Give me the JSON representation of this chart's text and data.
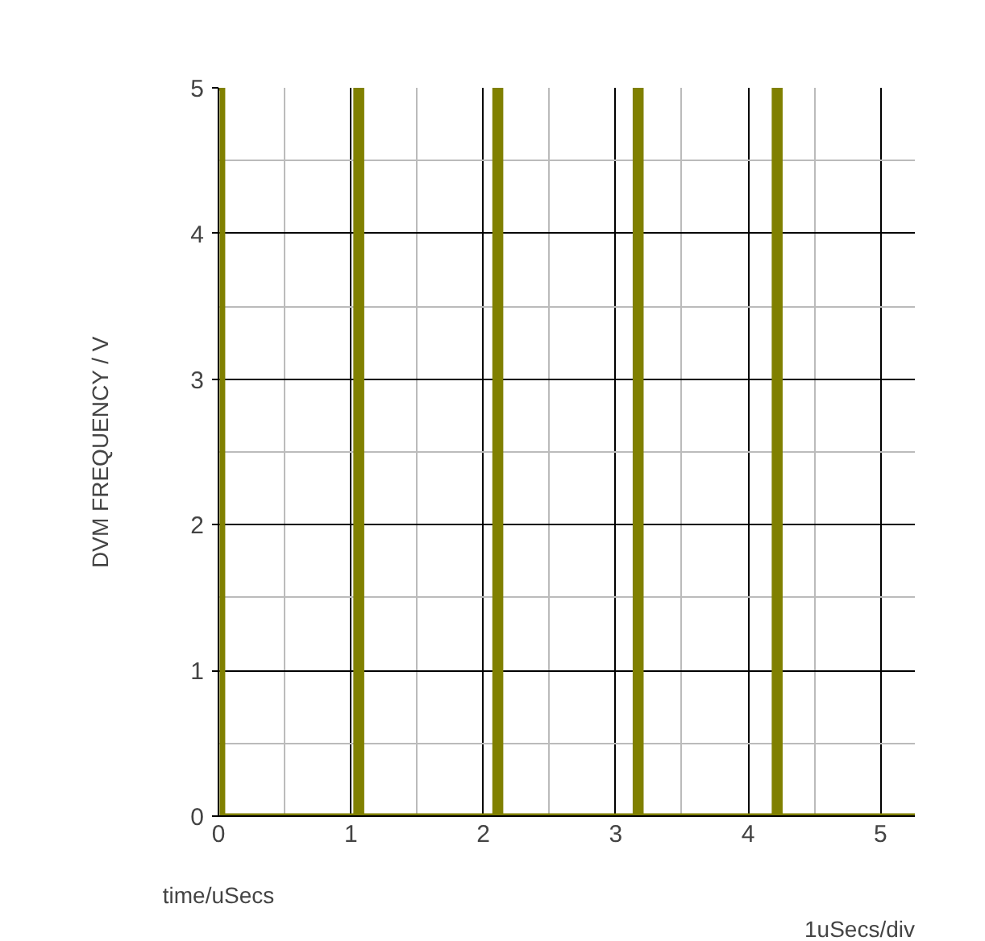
{
  "chart_data": {
    "type": "line",
    "xlabel": "time/uSecs",
    "ylabel": "DVM FREQUENCY / V",
    "annotations": [
      "1uSecs/div"
    ],
    "series": [
      {
        "color": "#808000",
        "x": [
          0,
          0.03,
          0.03,
          1.04,
          1.04,
          1.08,
          1.08,
          2.09,
          2.09,
          2.13,
          2.13,
          3.15,
          3.15,
          3.19,
          3.19,
          4.2,
          4.2,
          4.24,
          4.24,
          5.26
        ],
        "values": [
          5,
          5,
          0,
          0,
          5,
          5,
          0,
          0,
          5,
          5,
          0,
          0,
          5,
          5,
          0,
          0,
          5,
          5,
          0,
          0
        ]
      }
    ],
    "xlim": [
      0,
      5.26
    ],
    "ylim": [
      0,
      5
    ],
    "xticks": [
      0,
      1,
      2,
      3,
      4,
      5
    ],
    "yticks": [
      0,
      1,
      2,
      3,
      4,
      5
    ],
    "grid": true,
    "line_style": "solid"
  }
}
